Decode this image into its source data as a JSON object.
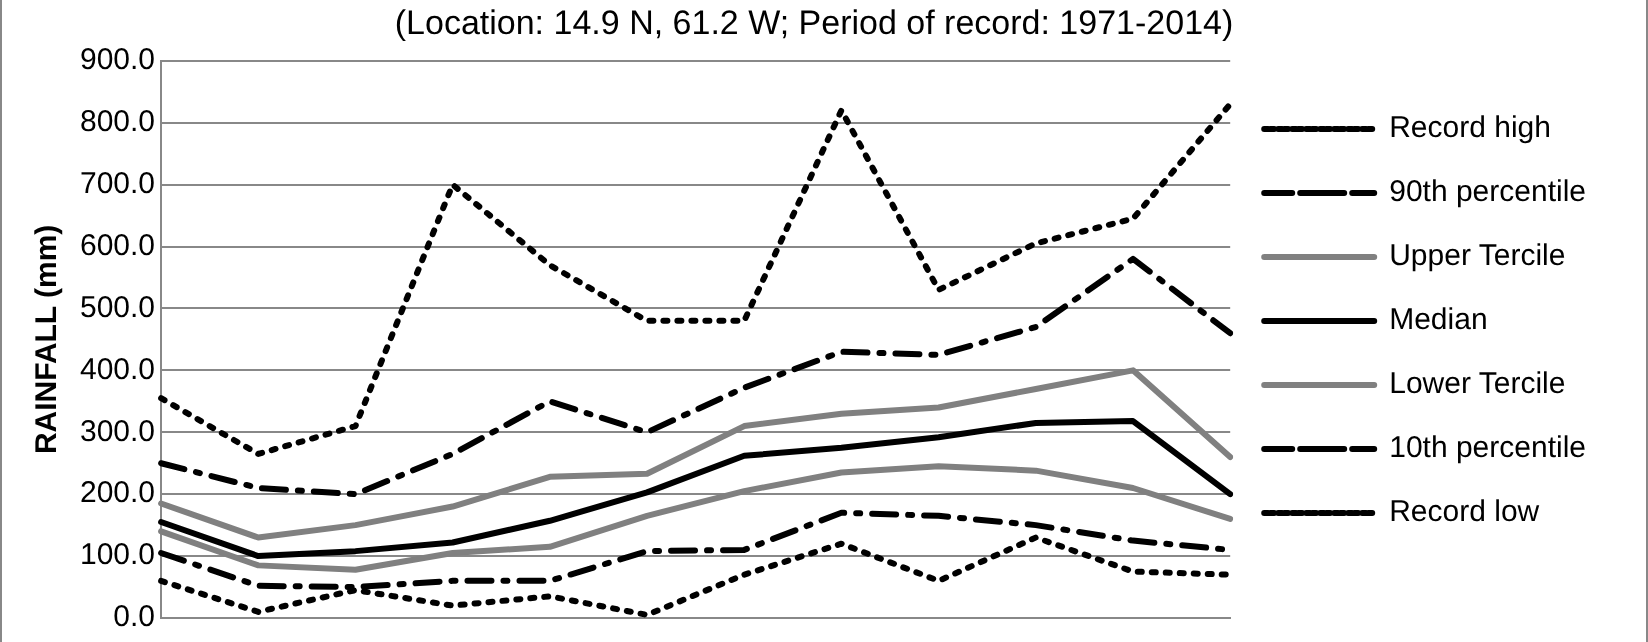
{
  "chart_data": {
    "type": "line",
    "title": "(Location: 14.9 N, 61.2 W; Period of record: 1971-2014)",
    "ylabel": "RAINFALL (mm)",
    "categories": [
      null,
      null,
      null,
      null,
      null,
      null,
      null,
      null,
      null,
      null,
      null,
      null
    ],
    "series": [
      {
        "name": "Record high",
        "color": "#000000",
        "line_style": "dotted",
        "values": [
          355,
          265,
          310,
          700,
          570,
          480,
          480,
          820,
          530,
          605,
          645,
          830
        ]
      },
      {
        "name": "90th percentile",
        "color": "#000000",
        "line_style": "dashed",
        "values": [
          250,
          210,
          200,
          265,
          350,
          300,
          372,
          430,
          425,
          470,
          580,
          460
        ]
      },
      {
        "name": "Upper Tercile",
        "color": "#808080",
        "line_style": "solid",
        "values": [
          185,
          130,
          150,
          180,
          228,
          233,
          310,
          330,
          340,
          370,
          400,
          260
        ]
      },
      {
        "name": "Median",
        "color": "#000000",
        "line_style": "solid",
        "values": [
          155,
          100,
          108,
          122,
          157,
          203,
          262,
          275,
          292,
          315,
          318,
          200
        ]
      },
      {
        "name": "Lower Tercile",
        "color": "#808080",
        "line_style": "solid",
        "values": [
          140,
          85,
          78,
          105,
          115,
          165,
          205,
          235,
          245,
          238,
          210,
          160
        ]
      },
      {
        "name": "10th percentile",
        "color": "#000000",
        "line_style": "dashed",
        "values": [
          105,
          52,
          50,
          60,
          60,
          108,
          110,
          170,
          165,
          150,
          125,
          110
        ]
      },
      {
        "name": "Record low",
        "color": "#000000",
        "line_style": "dotted",
        "values": [
          60,
          10,
          45,
          20,
          35,
          5,
          70,
          120,
          60,
          130,
          75,
          70
        ]
      }
    ],
    "ylim": [
      0,
      900
    ],
    "yticks": [
      {
        "value": 0,
        "label": "0.0"
      },
      {
        "value": 100,
        "label": "100.0"
      },
      {
        "value": 200,
        "label": "200.0"
      },
      {
        "value": 300,
        "label": "300.0"
      },
      {
        "value": 400,
        "label": "400.0"
      },
      {
        "value": 500,
        "label": "500.0"
      },
      {
        "value": 600,
        "label": "600.0"
      },
      {
        "value": 700,
        "label": "700.0"
      },
      {
        "value": 800,
        "label": "800.0"
      },
      {
        "value": 900,
        "label": "900.0"
      }
    ],
    "grid": "y",
    "legend": "right",
    "tick_labels": "y",
    "marker": "none"
  }
}
